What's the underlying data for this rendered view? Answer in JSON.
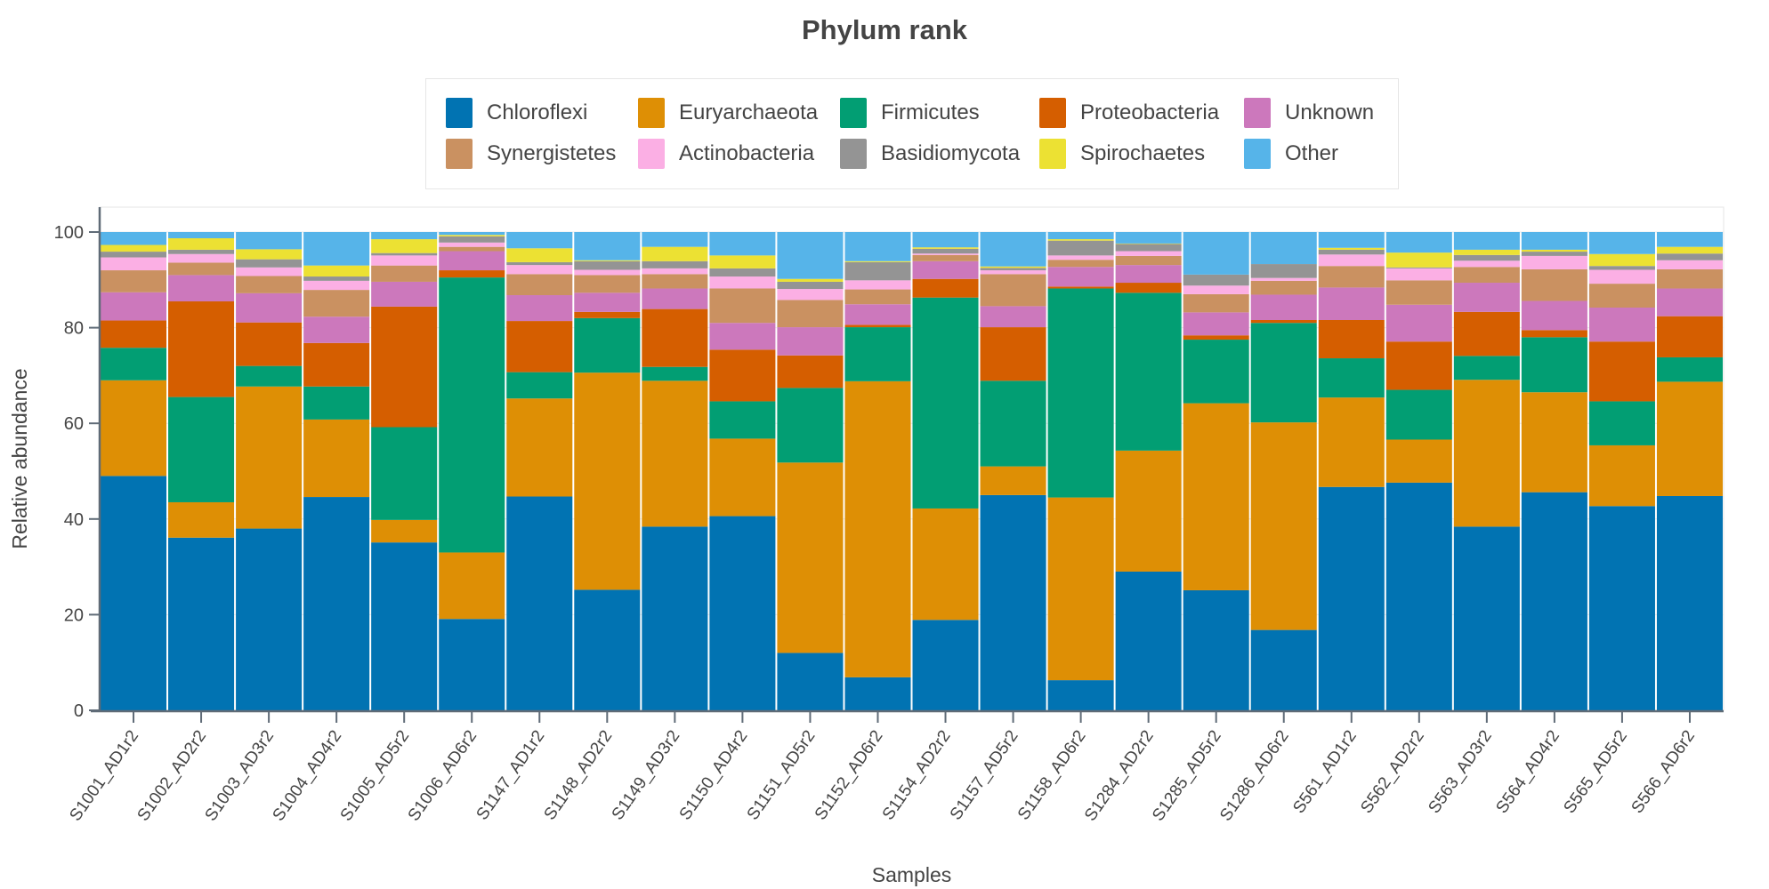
{
  "chart_data": {
    "type": "bar",
    "stacked": true,
    "title": "Phylum rank",
    "xlabel": "Samples",
    "ylabel": "Relative abundance",
    "ylim": [
      0,
      100
    ],
    "yticks": [
      0,
      20,
      40,
      60,
      80,
      100
    ],
    "legend_position": "top",
    "categories": [
      "S1001_AD1r2",
      "S1002_AD2r2",
      "S1003_AD3r2",
      "S1004_AD4r2",
      "S1005_AD5r2",
      "S1006_AD6r2",
      "S1147_AD1r2",
      "S1148_AD2r2",
      "S1149_AD3r2",
      "S1150_AD4r2",
      "S1151_AD5r2",
      "S1152_AD6r2",
      "S1154_AD2r2",
      "S1157_AD5r2",
      "S1158_AD6r2",
      "S1284_AD2r2",
      "S1285_AD5r2",
      "S1286_AD6r2",
      "S561_AD1r2",
      "S562_AD2r2",
      "S563_AD3r2",
      "S564_AD4r2",
      "S565_AD5r2",
      "S566_AD6r2"
    ],
    "series": [
      {
        "name": "Chloroflexi",
        "color": "#0173b2",
        "values": [
          49.0,
          36.1,
          38.0,
          44.6,
          35.1,
          19.1,
          44.7,
          25.2,
          38.4,
          40.6,
          12.0,
          6.9,
          18.9,
          45.0,
          6.3,
          29.0,
          25.1,
          16.8,
          46.7,
          47.6,
          38.4,
          45.6,
          42.7,
          44.8
        ]
      },
      {
        "name": "Euryarchaeota",
        "color": "#de8f05",
        "values": [
          20.0,
          7.4,
          29.7,
          16.2,
          4.7,
          13.9,
          20.5,
          45.4,
          30.5,
          16.2,
          39.8,
          61.9,
          23.3,
          6.0,
          38.2,
          25.3,
          39.1,
          43.4,
          18.7,
          9.0,
          30.7,
          20.9,
          12.7,
          23.9
        ]
      },
      {
        "name": "Firmicutes",
        "color": "#029e73",
        "values": [
          6.8,
          22.0,
          4.3,
          6.9,
          19.4,
          57.5,
          5.5,
          11.4,
          2.9,
          7.8,
          15.6,
          11.3,
          44.1,
          17.9,
          43.7,
          33.0,
          13.3,
          20.8,
          8.2,
          10.4,
          5.0,
          11.5,
          9.2,
          5.1
        ]
      },
      {
        "name": "Proteobacteria",
        "color": "#d55e00",
        "values": [
          5.7,
          20.0,
          9.1,
          9.1,
          25.2,
          1.5,
          10.7,
          1.3,
          12.1,
          10.8,
          6.8,
          0.5,
          3.9,
          11.2,
          0.4,
          2.1,
          0.9,
          0.6,
          8.0,
          10.1,
          9.2,
          1.5,
          12.5,
          8.6
        ]
      },
      {
        "name": "Unknown",
        "color": "#cc78bc",
        "values": [
          5.9,
          5.5,
          6.1,
          5.5,
          5.2,
          4.0,
          5.4,
          4.0,
          4.3,
          5.6,
          5.9,
          4.3,
          3.7,
          4.4,
          4.1,
          3.7,
          4.8,
          5.3,
          6.8,
          7.7,
          6.1,
          6.1,
          7.1,
          5.8
        ]
      },
      {
        "name": "Synergistetes",
        "color": "#ca9161",
        "values": [
          4.6,
          2.6,
          3.6,
          5.6,
          3.4,
          0.9,
          4.4,
          3.7,
          3.0,
          7.2,
          5.7,
          3.1,
          1.3,
          6.7,
          1.5,
          1.9,
          3.8,
          2.9,
          4.5,
          5.1,
          3.3,
          6.6,
          5.0,
          4.0
        ]
      },
      {
        "name": "Actinobacteria",
        "color": "#fbafe4",
        "values": [
          2.7,
          1.8,
          1.8,
          1.9,
          2.1,
          0.9,
          1.9,
          1.1,
          1.2,
          2.5,
          2.3,
          1.9,
          0.3,
          0.8,
          0.9,
          1.0,
          1.8,
          0.6,
          2.4,
          2.5,
          1.3,
          2.8,
          2.9,
          1.9
        ]
      },
      {
        "name": "Basidiomycota",
        "color": "#949494",
        "values": [
          1.2,
          0.9,
          1.7,
          0.9,
          0.5,
          1.3,
          0.6,
          1.8,
          1.5,
          1.7,
          1.5,
          3.8,
          1.0,
          0.5,
          3.1,
          1.5,
          2.3,
          2.9,
          1.0,
          0.2,
          1.2,
          0.9,
          0.8,
          1.4
        ]
      },
      {
        "name": "Spirochaetes",
        "color": "#ece133",
        "values": [
          1.4,
          2.4,
          2.1,
          2.3,
          2.9,
          0.3,
          2.9,
          0.2,
          3.0,
          2.7,
          0.6,
          0.2,
          0.3,
          0.3,
          0.3,
          0.1,
          0.0,
          0.0,
          0.4,
          3.1,
          1.1,
          0.4,
          2.5,
          1.4
        ]
      },
      {
        "name": "Other",
        "color": "#56b4e9",
        "values": [
          2.7,
          1.3,
          3.6,
          7.0,
          1.5,
          0.6,
          3.4,
          5.9,
          3.1,
          4.9,
          9.8,
          6.1,
          3.2,
          7.2,
          1.5,
          2.4,
          8.9,
          6.7,
          3.3,
          4.3,
          3.7,
          3.7,
          4.6,
          3.1
        ]
      }
    ]
  }
}
